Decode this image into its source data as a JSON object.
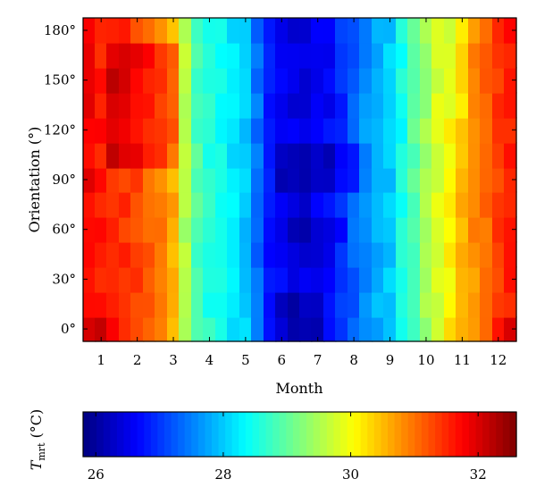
{
  "chart_data": {
    "type": "heatmap",
    "xlabel": "Month",
    "ylabel": "Orientation (°)",
    "x_ticks": [
      1,
      2,
      3,
      4,
      5,
      6,
      7,
      8,
      9,
      10,
      11,
      12
    ],
    "x_tick_labels": [
      "1",
      "2",
      "3",
      "4",
      "5",
      "6",
      "7",
      "8",
      "9",
      "10",
      "11",
      "12"
    ],
    "xlim": [
      0.5,
      12.5
    ],
    "y_ticks": [
      0,
      30,
      60,
      90,
      120,
      150,
      180
    ],
    "y_tick_labels": [
      "0°",
      "30°",
      "60°",
      "90°",
      "120°",
      "150°",
      "180°"
    ],
    "ylim": [
      -7.5,
      187.5
    ],
    "x_step": 0.3333,
    "y_step": 15,
    "y_values": [
      0,
      15,
      30,
      45,
      60,
      75,
      90,
      105,
      120,
      135,
      150,
      165,
      180
    ],
    "x_values": [
      0.667,
      1.0,
      1.333,
      1.667,
      2.0,
      2.333,
      2.667,
      3.0,
      3.333,
      3.667,
      4.0,
      4.333,
      4.667,
      5.0,
      5.333,
      5.667,
      6.0,
      6.333,
      6.667,
      7.0,
      7.333,
      7.667,
      8.0,
      8.333,
      8.667,
      9.0,
      9.333,
      9.667,
      10.0,
      10.333,
      10.667,
      11.0,
      11.333,
      11.667,
      12.0,
      12.333
    ],
    "month_profile_c": [
      31.9,
      31.6,
      31.5,
      31.3,
      31.0,
      30.6,
      29.0,
      28.6,
      28.0,
      26.7,
      26.4,
      26.6,
      27.6,
      28.0,
      29.4,
      30.5,
      31.2,
      31.7
    ],
    "month_profile_month": [
      0.5,
      1.0,
      1.5,
      2.0,
      2.5,
      3.0,
      3.5,
      4.0,
      5.0,
      5.7,
      6.5,
      7.3,
      8.3,
      9.0,
      10.0,
      11.0,
      11.8,
      12.5
    ],
    "colorbar": {
      "label": "T_mrt (°C)",
      "label_main": "T",
      "label_sub": "mrt",
      "label_unit": " (°C)",
      "min": 25.8,
      "max": 32.6,
      "ticks": [
        26,
        28,
        30,
        32
      ],
      "tick_labels": [
        "26",
        "28",
        "30",
        "32"
      ],
      "colormap": "jet"
    },
    "grid": false
  }
}
